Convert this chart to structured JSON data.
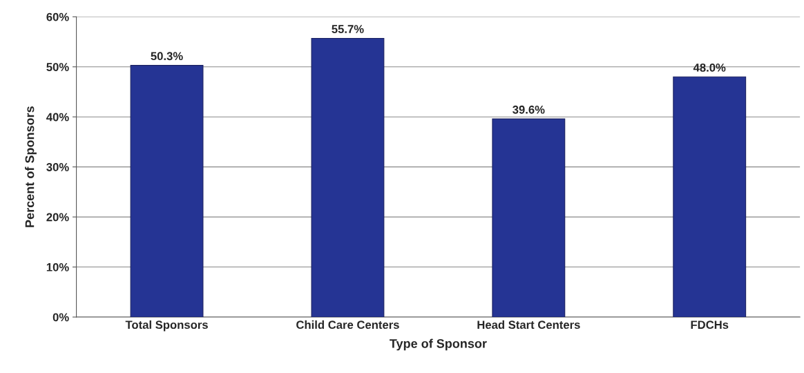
{
  "chart_data": {
    "type": "bar",
    "xlabel": "Type of Sponsor",
    "ylabel": "Percent of Sponsors",
    "categories": [
      "Total Sponsors",
      "Child Care Centers",
      "Head Start Centers",
      "FDCHs"
    ],
    "values": [
      50.3,
      55.7,
      39.6,
      48.0
    ],
    "value_labels": [
      "50.3%",
      "55.7%",
      "39.6%",
      "48.0%"
    ],
    "color": "#253494",
    "ylim": [
      0,
      60
    ],
    "yticks": [
      {
        "value": 0,
        "label": "0%"
      },
      {
        "value": 10,
        "label": "10%"
      },
      {
        "value": 20,
        "label": "20%"
      },
      {
        "value": 30,
        "label": "30%"
      },
      {
        "value": 40,
        "label": "40%"
      },
      {
        "value": 50,
        "label": "50%"
      },
      {
        "value": 60,
        "label": "60%"
      }
    ],
    "grid": "y",
    "legend": false
  }
}
